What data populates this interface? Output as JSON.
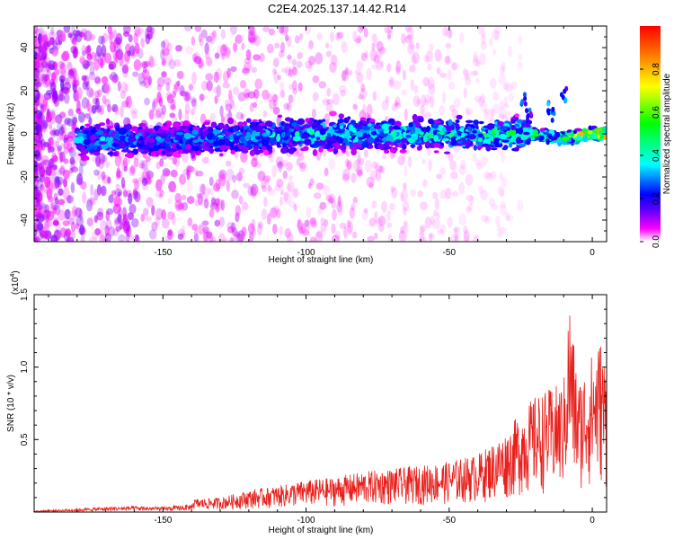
{
  "page": {
    "title": "C2E4.2025.137.14.42.R14"
  },
  "chart_data": [
    {
      "type": "heatmap",
      "xlabel": "Height of straight line (km)",
      "ylabel": "Frequency (Hz)",
      "xlim": [
        -195,
        5
      ],
      "ylim": [
        -50,
        50
      ],
      "x_ticks": [
        -150,
        -100,
        -50,
        0
      ],
      "y_ticks": [
        -40,
        -20,
        0,
        20,
        40
      ],
      "colorbar": {
        "label": "Normalized spectral amplitude",
        "range": [
          0,
          1
        ],
        "ticks": [
          0.0,
          0.2,
          0.4,
          0.6,
          0.8
        ],
        "colormap": [
          "#ffffff",
          "#ff00ff",
          "#6600ff",
          "#0000ff",
          "#00ffff",
          "#00ff00",
          "#ffff00",
          "#ff8800",
          "#ff0000"
        ]
      },
      "ridge": {
        "description_x": [
          -180,
          -150,
          -100,
          -50,
          -22,
          -10,
          0
        ],
        "center_frequency": [
          -3,
          -3,
          0,
          0,
          0,
          -2,
          0
        ],
        "peak_amplitude": [
          0.35,
          0.3,
          0.4,
          0.45,
          0.5,
          0.6,
          0.9
        ]
      }
    },
    {
      "type": "line",
      "xlabel": "Height of straight line (km)",
      "ylabel": "SNR (10 * v/v)",
      "y_multiplier_label": "(x10",
      "y_multiplier_exp": "4",
      "xlim": [
        -195,
        5
      ],
      "ylim": [
        0,
        15000
      ],
      "x_ticks": [
        -150,
        -100,
        -50,
        0
      ],
      "y_ticks": [
        5000,
        10000,
        15000
      ],
      "y_tick_labels": [
        "0.5",
        "1.0",
        "1.5"
      ],
      "series": [
        {
          "color": "#e8201c",
          "x": [
            -195,
            -180,
            -170,
            -160,
            -150,
            -140,
            -130,
            -120,
            -110,
            -100,
            -90,
            -80,
            -70,
            -60,
            -50,
            -40,
            -30,
            -25,
            -20,
            -15,
            -10,
            -8,
            -5,
            0,
            3,
            5
          ],
          "y": [
            150,
            400,
            600,
            700,
            600,
            900,
            1000,
            1500,
            1800,
            2200,
            2400,
            2800,
            3000,
            3200,
            3500,
            4000,
            5500,
            7000,
            8000,
            8500,
            9000,
            15000,
            9000,
            11000,
            12000,
            10000
          ]
        }
      ]
    }
  ]
}
